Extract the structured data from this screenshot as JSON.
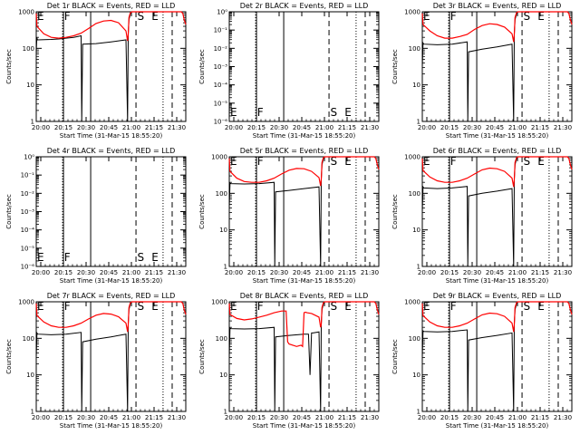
{
  "chart_data": [
    {
      "type": "line",
      "title": "Det 1r BLACK = Events, RED = LLD",
      "ylabel": "Counts/sec",
      "xlabel": "Start Time (31-Mar-15 18:55:20)",
      "yscale": "log",
      "ylim": [
        1,
        1000
      ],
      "yticks": [
        "1",
        "10",
        "100",
        "1000"
      ],
      "xticks": [
        "20:00",
        "20:15",
        "20:30",
        "20:45",
        "21:00",
        "21:15",
        "21:30"
      ],
      "markers": [
        "E",
        "F",
        "S",
        "E"
      ],
      "series": [
        {
          "color": "#000000",
          "x": [
            0,
            0.4,
            0.8,
            1.0,
            10,
            15,
            20,
            25,
            30,
            30.4,
            31,
            40,
            50,
            60,
            61.1,
            61.5,
            62,
            63,
            64
          ],
          "y": [
            80,
            200,
            170,
            170,
            175,
            180,
            190,
            200,
            220,
            0,
            130,
            135,
            150,
            170,
            0,
            250,
            600,
            900,
            1000
          ]
        },
        {
          "color": "#ff0000",
          "x": [
            0,
            0.5,
            5,
            10,
            15,
            20,
            25,
            30,
            35,
            40,
            45,
            50,
            55,
            60,
            61.1,
            61.5,
            62,
            63,
            64,
            67,
            70,
            73,
            76,
            79,
            82,
            85,
            88,
            91,
            94,
            97,
            98,
            99,
            100
          ],
          "y": [
            900,
            400,
            250,
            200,
            190,
            200,
            220,
            260,
            350,
            480,
            560,
            580,
            500,
            300,
            160,
            240,
            700,
            950,
            1000,
            1000,
            1000,
            1000,
            1000,
            1000,
            1000,
            1000,
            1000,
            1000,
            1000,
            1000,
            900,
            600,
            450
          ]
        }
      ]
    },
    {
      "type": "line",
      "title": "Det 2r BLACK = Events, RED = LLD",
      "ylabel": "Counts/sec",
      "xlabel": "Start Time (31-Mar-15 18:55:20)",
      "yscale": "log",
      "ylim": [
        1e-06,
        1
      ],
      "yticks": [
        "10⁻⁶",
        "10⁻⁵",
        "10⁻⁴",
        "10⁻³",
        "10⁻²",
        "10⁻¹",
        "10⁰"
      ],
      "xticks": [
        "20:00",
        "20:15",
        "20:30",
        "20:45",
        "21:00",
        "21:15",
        "21:30"
      ],
      "markers": [
        "E",
        "F",
        "S",
        "E"
      ],
      "series": []
    },
    {
      "type": "line",
      "title": "Det 3r BLACK = Events, RED = LLD",
      "ylabel": "Counts/sec",
      "xlabel": "Start Time (31-Mar-15 18:55:20)",
      "yscale": "log",
      "ylim": [
        1,
        1000
      ],
      "yticks": [
        "1",
        "10",
        "100",
        "1000"
      ],
      "xticks": [
        "20:00",
        "20:15",
        "20:30",
        "20:45",
        "21:00",
        "21:15",
        "21:30"
      ],
      "markers": [
        "E",
        "F",
        "S",
        "E"
      ],
      "series": [
        {
          "color": "#000000",
          "x": [
            0,
            0.5,
            1.0,
            10,
            20,
            30,
            30.4,
            31,
            40,
            50,
            60,
            61.1,
            61.5,
            62,
            63,
            64
          ],
          "y": [
            30,
            140,
            130,
            125,
            130,
            150,
            0,
            80,
            95,
            110,
            130,
            0,
            250,
            600,
            900,
            1000
          ]
        },
        {
          "color": "#ff0000",
          "x": [
            0,
            0.5,
            5,
            10,
            15,
            20,
            25,
            30,
            35,
            40,
            45,
            50,
            55,
            60,
            61.1,
            61.5,
            62,
            63,
            64,
            70,
            80,
            90,
            97,
            98,
            99,
            100
          ],
          "y": [
            900,
            450,
            300,
            220,
            190,
            190,
            210,
            240,
            330,
            420,
            470,
            450,
            380,
            250,
            150,
            240,
            700,
            950,
            1000,
            1000,
            1000,
            1000,
            1000,
            900,
            600,
            450
          ]
        }
      ]
    },
    {
      "type": "line",
      "title": "Det 4r BLACK = Events, RED = LLD",
      "ylabel": "Counts/sec",
      "xlabel": "Start Time (31-Mar-15 18:55:20)",
      "yscale": "log",
      "ylim": [
        1e-06,
        1
      ],
      "yticks": [
        "10⁻⁶",
        "10⁻⁵",
        "10⁻⁴",
        "10⁻³",
        "10⁻²",
        "10⁻¹",
        "10⁰"
      ],
      "xticks": [
        "20:00",
        "20:15",
        "20:30",
        "20:45",
        "21:00",
        "21:15",
        "21:30"
      ],
      "markers": [
        "E",
        "F",
        "S",
        "E"
      ],
      "series": []
    },
    {
      "type": "line",
      "title": "Det 5r BLACK = Events, RED = LLD",
      "ylabel": "Counts/sec",
      "xlabel": "Start Time (31-Mar-15 18:55:20)",
      "yscale": "log",
      "ylim": [
        1,
        1000
      ],
      "yticks": [
        "1",
        "10",
        "100",
        "1000"
      ],
      "xticks": [
        "20:00",
        "20:15",
        "20:30",
        "20:45",
        "21:00",
        "21:15",
        "21:30"
      ],
      "markers": [
        "E",
        "F",
        "S",
        "E"
      ],
      "series": [
        {
          "color": "#000000",
          "x": [
            0,
            0.5,
            1.0,
            10,
            20,
            30,
            30.4,
            31,
            40,
            50,
            60,
            61.1,
            61.5,
            62,
            63,
            64
          ],
          "y": [
            40,
            190,
            185,
            180,
            185,
            200,
            0,
            110,
            120,
            135,
            150,
            0,
            250,
            600,
            900,
            1000
          ]
        },
        {
          "color": "#ff0000",
          "x": [
            0,
            0.5,
            5,
            10,
            15,
            20,
            25,
            30,
            35,
            40,
            45,
            50,
            55,
            60,
            61.1,
            61.5,
            62,
            63,
            64,
            70,
            80,
            90,
            97,
            98,
            99,
            100
          ],
          "y": [
            900,
            400,
            260,
            210,
            200,
            200,
            220,
            260,
            340,
            430,
            480,
            470,
            400,
            270,
            160,
            240,
            700,
            950,
            1000,
            1000,
            1000,
            1000,
            1000,
            900,
            600,
            450
          ]
        }
      ]
    },
    {
      "type": "line",
      "title": "Det 6r BLACK = Events, RED = LLD",
      "ylabel": "Counts/sec",
      "xlabel": "Start Time (31-Mar-15 18:55:20)",
      "yscale": "log",
      "ylim": [
        1,
        1000
      ],
      "yticks": [
        "1",
        "10",
        "100",
        "1000"
      ],
      "xticks": [
        "20:00",
        "20:15",
        "20:30",
        "20:45",
        "21:00",
        "21:15",
        "21:30"
      ],
      "markers": [
        "E",
        "F",
        "S",
        "E"
      ],
      "series": [
        {
          "color": "#000000",
          "x": [
            0,
            0.5,
            1.0,
            10,
            20,
            30,
            30.4,
            31,
            40,
            50,
            60,
            61.1,
            61.5,
            62,
            63,
            64
          ],
          "y": [
            30,
            150,
            140,
            135,
            140,
            155,
            0,
            85,
            100,
            115,
            135,
            0,
            250,
            600,
            900,
            1000
          ]
        },
        {
          "color": "#ff0000",
          "x": [
            0,
            0.5,
            5,
            10,
            15,
            20,
            25,
            30,
            35,
            40,
            45,
            50,
            55,
            60,
            61.1,
            61.5,
            62,
            63,
            64,
            70,
            80,
            90,
            97,
            98,
            99,
            100
          ],
          "y": [
            900,
            420,
            280,
            220,
            200,
            200,
            220,
            260,
            340,
            440,
            490,
            470,
            400,
            260,
            150,
            240,
            700,
            950,
            1000,
            1000,
            1000,
            1000,
            1000,
            900,
            600,
            450
          ]
        }
      ]
    },
    {
      "type": "line",
      "title": "Det 7r BLACK = Events, RED = LLD",
      "ylabel": "Counts/sec",
      "xlabel": "Start Time (31-Mar-15 18:55:20)",
      "yscale": "log",
      "ylim": [
        1,
        1000
      ],
      "yticks": [
        "1",
        "10",
        "100",
        "1000"
      ],
      "xticks": [
        "20:00",
        "20:15",
        "20:30",
        "20:45",
        "21:00",
        "21:15",
        "21:30"
      ],
      "markers": [
        "E",
        "F",
        "S",
        "E"
      ],
      "series": [
        {
          "color": "#000000",
          "x": [
            0,
            0.5,
            1.0,
            10,
            20,
            30,
            30.4,
            31,
            40,
            50,
            60,
            61.1,
            61.5,
            62,
            63,
            64
          ],
          "y": [
            30,
            140,
            130,
            125,
            130,
            145,
            0,
            80,
            95,
            110,
            130,
            0,
            250,
            600,
            900,
            1000
          ]
        },
        {
          "color": "#ff0000",
          "x": [
            0,
            0.5,
            5,
            10,
            15,
            20,
            25,
            30,
            35,
            40,
            45,
            50,
            55,
            60,
            61.1,
            61.5,
            62,
            63,
            64,
            70,
            80,
            90,
            97,
            98,
            99,
            100
          ],
          "y": [
            900,
            420,
            280,
            220,
            200,
            200,
            220,
            260,
            340,
            430,
            480,
            460,
            390,
            260,
            150,
            240,
            700,
            950,
            1000,
            1000,
            1000,
            1000,
            1000,
            900,
            600,
            450
          ]
        }
      ]
    },
    {
      "type": "line",
      "title": "Det 8r BLACK = Events, RED = LLD",
      "ylabel": "Counts/sec",
      "xlabel": "Start Time (31-Mar-15 18:55:20)",
      "yscale": "log",
      "ylim": [
        1,
        1000
      ],
      "yticks": [
        "1",
        "10",
        "100",
        "1000"
      ],
      "xticks": [
        "20:00",
        "20:15",
        "20:30",
        "20:45",
        "21:00",
        "21:15",
        "21:30"
      ],
      "markers": [
        "E",
        "F",
        "S",
        "E"
      ],
      "series": [
        {
          "color": "#000000",
          "x": [
            0,
            0.5,
            1.0,
            10,
            20,
            30,
            30.4,
            31,
            40,
            50,
            53,
            54,
            55,
            56,
            60,
            61.1,
            61.5,
            62,
            63,
            64
          ],
          "y": [
            30,
            190,
            185,
            180,
            185,
            200,
            0,
            110,
            120,
            130,
            130,
            10,
            140,
            140,
            150,
            0,
            250,
            600,
            900,
            1000
          ]
        },
        {
          "color": "#ff0000",
          "x": [
            0,
            0.5,
            5,
            10,
            15,
            20,
            25,
            30,
            35,
            38,
            39,
            40,
            45,
            48,
            49,
            50,
            51,
            52,
            55,
            60,
            61.1,
            61.5,
            62,
            63,
            64,
            70,
            80,
            90,
            97,
            98,
            99,
            100
          ],
          "y": [
            900,
            450,
            350,
            320,
            340,
            380,
            430,
            500,
            560,
            560,
            80,
            70,
            60,
            65,
            60,
            500,
            520,
            500,
            480,
            380,
            200,
            240,
            700,
            950,
            1000,
            1000,
            1000,
            1000,
            1000,
            900,
            600,
            450
          ]
        }
      ]
    },
    {
      "type": "line",
      "title": "Det 9r BLACK = Events, RED = LLD",
      "ylabel": "Counts/sec",
      "xlabel": "Start Time (31-Mar-15 18:55:20)",
      "yscale": "log",
      "ylim": [
        1,
        1000
      ],
      "yticks": [
        "1",
        "10",
        "100",
        "1000"
      ],
      "xticks": [
        "20:00",
        "20:15",
        "20:30",
        "20:45",
        "21:00",
        "21:15",
        "21:30"
      ],
      "markers": [
        "E",
        "F",
        "S",
        "E"
      ],
      "series": [
        {
          "color": "#000000",
          "x": [
            0,
            0.5,
            1.0,
            10,
            20,
            30,
            30.4,
            31,
            40,
            50,
            60,
            61.1,
            61.5,
            62,
            63,
            64
          ],
          "y": [
            30,
            160,
            155,
            150,
            155,
            170,
            0,
            90,
            105,
            120,
            140,
            0,
            250,
            600,
            900,
            1000
          ]
        },
        {
          "color": "#ff0000",
          "x": [
            0,
            0.5,
            5,
            10,
            15,
            20,
            25,
            30,
            35,
            40,
            45,
            50,
            55,
            60,
            61.1,
            61.5,
            62,
            63,
            64,
            70,
            80,
            90,
            97,
            98,
            99,
            100
          ],
          "y": [
            900,
            420,
            280,
            220,
            200,
            200,
            220,
            260,
            340,
            440,
            490,
            470,
            400,
            260,
            150,
            240,
            700,
            950,
            1000,
            1000,
            1000,
            1000,
            1000,
            900,
            600,
            450
          ]
        }
      ]
    }
  ]
}
